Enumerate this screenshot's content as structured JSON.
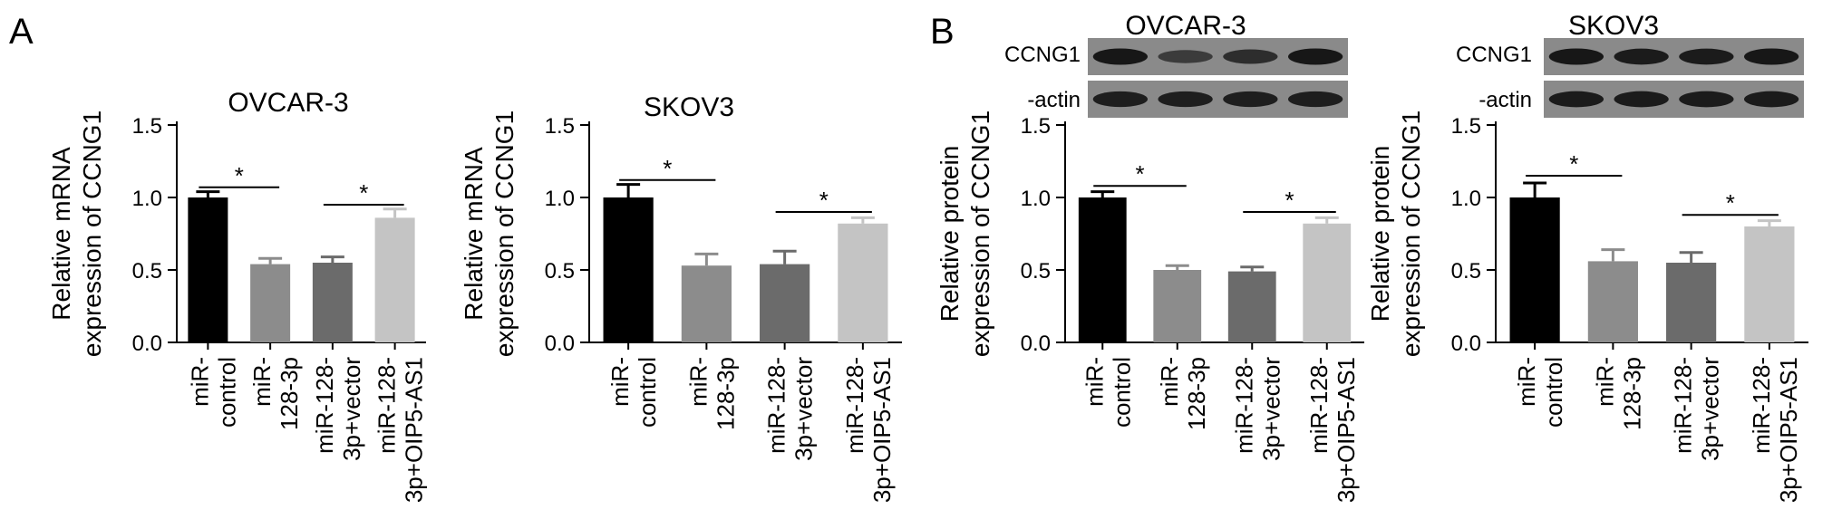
{
  "panels": [
    {
      "letter": "A",
      "charts": [
        {
          "type": "bar",
          "title": "OVCAR-3",
          "ylabel_lines": [
            "Relative mRNA",
            "expression of CCNG1"
          ],
          "categories": [
            [
              "miR-",
              "control"
            ],
            [
              "miR-",
              "128-3p"
            ],
            [
              "miR-128-",
              "3p+vector"
            ],
            [
              "miR-128-",
              "3p+OIP5-AS1"
            ]
          ],
          "values": [
            1.0,
            0.54,
            0.55,
            0.86
          ],
          "errors": [
            0.04,
            0.04,
            0.04,
            0.06
          ],
          "ylim": [
            0,
            1.5
          ],
          "yticks": [
            "0.0",
            "0.5",
            "1.0",
            "1.5"
          ],
          "colors": [
            "#000000",
            "#8c8c8c",
            "#6b6b6b",
            "#c4c4c4"
          ],
          "significance": [
            {
              "from": 0,
              "to": 1,
              "y": 1.07,
              "label": "*"
            },
            {
              "from": 2,
              "to": 3,
              "y": 0.95,
              "label": "*"
            }
          ]
        },
        {
          "type": "bar",
          "title": "SKOV3",
          "ylabel_lines": [
            "Relative mRNA",
            "expression of CCNG1"
          ],
          "categories": [
            [
              "miR-",
              "control"
            ],
            [
              "miR-",
              "128-3p"
            ],
            [
              "miR-128-",
              "3p+vector"
            ],
            [
              "miR-128-",
              "3p+OIP5-AS1"
            ]
          ],
          "values": [
            1.0,
            0.53,
            0.54,
            0.82
          ],
          "errors": [
            0.09,
            0.08,
            0.09,
            0.04
          ],
          "ylim": [
            0,
            1.5
          ],
          "yticks": [
            "0.0",
            "0.5",
            "1.0",
            "1.5"
          ],
          "colors": [
            "#000000",
            "#8c8c8c",
            "#6b6b6b",
            "#c4c4c4"
          ],
          "significance": [
            {
              "from": 0,
              "to": 1,
              "y": 1.12,
              "label": "*"
            },
            {
              "from": 2,
              "to": 3,
              "y": 0.9,
              "label": "*"
            }
          ]
        }
      ]
    },
    {
      "letter": "B",
      "charts": [
        {
          "type": "bar",
          "title": "OVCAR-3",
          "ylabel_lines": [
            "Relative protein",
            "expression of CCNG1"
          ],
          "categories": [
            [
              "miR-",
              "control"
            ],
            [
              "miR-",
              "128-3p"
            ],
            [
              "miR-128-",
              "3p+vector"
            ],
            [
              "miR-128-",
              "3p+OIP5-AS1"
            ]
          ],
          "values": [
            1.0,
            0.5,
            0.49,
            0.82
          ],
          "errors": [
            0.04,
            0.03,
            0.03,
            0.04
          ],
          "ylim": [
            0,
            1.5
          ],
          "yticks": [
            "0.0",
            "0.5",
            "1.0",
            "1.5"
          ],
          "colors": [
            "#000000",
            "#8c8c8c",
            "#6b6b6b",
            "#c4c4c4"
          ],
          "significance": [
            {
              "from": 0,
              "to": 1,
              "y": 1.08,
              "label": "*"
            },
            {
              "from": 2,
              "to": 3,
              "y": 0.9,
              "label": "*"
            }
          ],
          "blot": {
            "bands": [
              "CCNG1",
              "-actin"
            ],
            "intensity": [
              [
                1.0,
                0.5,
                0.7,
                1.0
              ],
              [
                0.9,
                0.9,
                0.9,
                0.9
              ]
            ]
          }
        },
        {
          "type": "bar",
          "title": "SKOV3",
          "ylabel_lines": [
            "Relative protein",
            "expression of CCNG1"
          ],
          "categories": [
            [
              "miR-",
              "control"
            ],
            [
              "miR-",
              "128-3p"
            ],
            [
              "miR-128-",
              "3p+vector"
            ],
            [
              "miR-128-",
              "3p+OIP5-AS1"
            ]
          ],
          "values": [
            1.0,
            0.56,
            0.55,
            0.8
          ],
          "errors": [
            0.1,
            0.08,
            0.07,
            0.04
          ],
          "ylim": [
            0,
            1.5
          ],
          "yticks": [
            "0.0",
            "0.5",
            "1.0",
            "1.5"
          ],
          "colors": [
            "#000000",
            "#8c8c8c",
            "#6b6b6b",
            "#c4c4c4"
          ],
          "significance": [
            {
              "from": 0,
              "to": 1,
              "y": 1.15,
              "label": "*"
            },
            {
              "from": 2,
              "to": 3,
              "y": 0.88,
              "label": "*"
            }
          ],
          "blot": {
            "bands": [
              "CCNG1",
              "-actin"
            ],
            "intensity": [
              [
                1.0,
                0.95,
                0.95,
                1.0
              ],
              [
                0.95,
                0.95,
                0.95,
                0.95
              ]
            ]
          }
        }
      ]
    }
  ]
}
